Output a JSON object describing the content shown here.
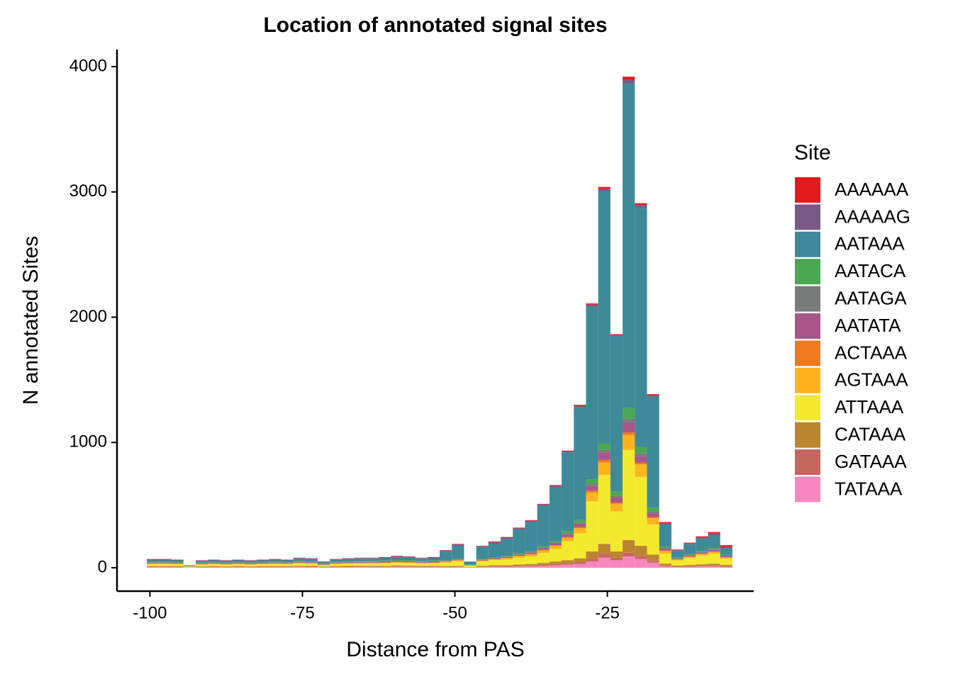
{
  "chart_data": {
    "type": "stacked_histogram",
    "title": "Location of annotated signal sites",
    "x_label": "Distance from PAS",
    "y_label": "N annotated Sites",
    "legend_title": "Site",
    "legend_position": "right",
    "bins": [
      -100.5,
      -98.5,
      -96.5,
      -94.5,
      -92.5,
      -90.5,
      -88.5,
      -86.5,
      -84.5,
      -82.5,
      -80.5,
      -78.5,
      -76.5,
      -74.5,
      -72.5,
      -70.5,
      -68.5,
      -66.5,
      -64.5,
      -62.5,
      -60.5,
      -58.5,
      -56.5,
      -54.5,
      -52.5,
      -50.5,
      -48.5,
      -46.5,
      -44.5,
      -42.5,
      -40.5,
      -38.5,
      -36.5,
      -34.5,
      -32.5,
      -30.5,
      -28.5,
      -26.5,
      -24.5,
      -22.5,
      -20.5,
      -18.5,
      -16.5,
      -14.5,
      -12.5,
      -10.5,
      -8.5,
      -6.5,
      -4.5
    ],
    "xlim": [
      -105.4,
      -1
    ],
    "xticks": [
      -100,
      -75,
      -50,
      -25
    ],
    "ylim": [
      -187,
      4136
    ],
    "yticks": [
      0,
      1000,
      2000,
      3000,
      4000
    ],
    "series": [
      {
        "name": "AAAAAA",
        "color": "#e41a1c",
        "values": [
          2,
          2,
          2,
          1,
          2,
          2,
          2,
          2,
          2,
          2,
          2,
          2,
          2,
          2,
          1,
          2,
          2,
          2,
          2,
          3,
          3,
          3,
          2,
          3,
          4,
          4,
          1,
          4,
          5,
          5,
          5,
          5,
          5,
          5,
          5,
          10,
          10,
          15,
          5,
          25,
          15,
          10,
          8,
          4,
          6,
          8,
          10,
          15
        ]
      },
      {
        "name": "AAAAAG",
        "color": "#775b86",
        "values": [
          5,
          5,
          4,
          1,
          4,
          4,
          4,
          4,
          4,
          4,
          5,
          4,
          6,
          6,
          4,
          5,
          6,
          6,
          6,
          6,
          8,
          7,
          6,
          6,
          8,
          8,
          3,
          6,
          10,
          10,
          10,
          10,
          10,
          10,
          10,
          10,
          15,
          25,
          10,
          30,
          25,
          10,
          12,
          6,
          9,
          12,
          15,
          10
        ]
      },
      {
        "name": "AATAAA",
        "color": "#3e8a99",
        "values": [
          15,
          15,
          14,
          4,
          13,
          14,
          13,
          14,
          13,
          14,
          15,
          14,
          18,
          16,
          11,
          15,
          16,
          18,
          18,
          19,
          22,
          21,
          18,
          19,
          68,
          105,
          22,
          94,
          111,
          136,
          191,
          234,
          325,
          435,
          630,
          900,
          1380,
          2010,
          1240,
          2590,
          1905,
          885,
          175,
          55,
          77,
          96,
          104,
          52
        ]
      },
      {
        "name": "AATACA",
        "color": "#4aa853",
        "values": [
          5,
          5,
          4,
          1,
          4,
          4,
          4,
          4,
          4,
          4,
          5,
          4,
          5,
          5,
          4,
          5,
          5,
          5,
          5,
          6,
          6,
          6,
          5,
          6,
          4,
          5,
          2,
          5,
          5,
          6,
          7,
          8,
          10,
          10,
          15,
          20,
          35,
          50,
          35,
          85,
          50,
          30,
          12,
          5,
          7,
          9,
          10,
          7
        ]
      },
      {
        "name": "AATAGA",
        "color": "#7a7c7c",
        "values": [
          3,
          3,
          3,
          1,
          3,
          3,
          3,
          3,
          3,
          3,
          3,
          3,
          3,
          3,
          2,
          3,
          3,
          3,
          3,
          3,
          3,
          3,
          3,
          3,
          2,
          2,
          1,
          2,
          3,
          3,
          4,
          4,
          5,
          5,
          10,
          10,
          15,
          20,
          15,
          30,
          25,
          15,
          5,
          2,
          3,
          3,
          4,
          3
        ]
      },
      {
        "name": "AATATA",
        "color": "#a8568a",
        "values": [
          5,
          5,
          5,
          1,
          4,
          5,
          4,
          5,
          4,
          5,
          5,
          5,
          6,
          5,
          4,
          5,
          5,
          6,
          6,
          6,
          7,
          6,
          6,
          6,
          5,
          6,
          2,
          5,
          6,
          7,
          8,
          10,
          12,
          15,
          20,
          25,
          40,
          60,
          40,
          80,
          50,
          30,
          15,
          6,
          8,
          10,
          12,
          8
        ]
      },
      {
        "name": "ACTAAA",
        "color": "#ee7a22",
        "values": [
          2,
          2,
          2,
          1,
          2,
          2,
          2,
          2,
          2,
          2,
          2,
          2,
          2,
          2,
          1,
          2,
          2,
          2,
          2,
          2,
          2,
          2,
          2,
          2,
          2,
          2,
          1,
          2,
          2,
          3,
          3,
          4,
          5,
          5,
          5,
          10,
          15,
          20,
          10,
          20,
          15,
          10,
          5,
          2,
          3,
          3,
          4,
          3
        ]
      },
      {
        "name": "AGTAAA",
        "color": "#fdb41f",
        "values": [
          5,
          5,
          4,
          1,
          4,
          4,
          4,
          4,
          4,
          4,
          5,
          4,
          5,
          5,
          3,
          5,
          5,
          5,
          5,
          6,
          6,
          6,
          5,
          6,
          6,
          8,
          3,
          7,
          8,
          10,
          12,
          15,
          20,
          25,
          30,
          40,
          70,
          100,
          60,
          120,
          100,
          50,
          20,
          8,
          10,
          12,
          14,
          10
        ]
      },
      {
        "name": "ATTAAA",
        "color": "#f3ea2e",
        "values": [
          15,
          15,
          14,
          5,
          13,
          14,
          13,
          14,
          13,
          14,
          15,
          14,
          18,
          17,
          10,
          15,
          17,
          18,
          18,
          19,
          21,
          20,
          18,
          19,
          28,
          35,
          10,
          35,
          40,
          45,
          55,
          60,
          80,
          100,
          150,
          200,
          400,
          550,
          320,
          720,
          550,
          240,
          80,
          40,
          55,
          70,
          80,
          50
        ]
      },
      {
        "name": "CATAAA",
        "color": "#bc852f",
        "values": [
          5,
          5,
          5,
          2,
          4,
          5,
          4,
          5,
          4,
          5,
          5,
          5,
          6,
          6,
          4,
          5,
          6,
          6,
          6,
          6,
          7,
          7,
          6,
          6,
          5,
          6,
          2,
          6,
          8,
          8,
          10,
          12,
          15,
          20,
          25,
          30,
          60,
          80,
          50,
          100,
          80,
          50,
          15,
          8,
          10,
          12,
          14,
          10
        ]
      },
      {
        "name": "GATAAA",
        "color": "#c5665f",
        "values": [
          3,
          3,
          3,
          1,
          3,
          3,
          3,
          3,
          3,
          3,
          3,
          3,
          3,
          3,
          2,
          3,
          3,
          3,
          3,
          3,
          3,
          3,
          3,
          3,
          3,
          3,
          1,
          3,
          4,
          4,
          5,
          6,
          8,
          10,
          10,
          15,
          20,
          30,
          20,
          30,
          25,
          15,
          6,
          3,
          4,
          5,
          6,
          4
        ]
      },
      {
        "name": "TATAAA",
        "color": "#f787bf",
        "values": [
          5,
          5,
          5,
          1,
          4,
          5,
          4,
          5,
          4,
          5,
          5,
          5,
          6,
          5,
          4,
          5,
          5,
          6,
          6,
          6,
          7,
          6,
          6,
          6,
          5,
          6,
          2,
          6,
          8,
          8,
          10,
          12,
          15,
          20,
          25,
          30,
          50,
          80,
          60,
          90,
          70,
          40,
          12,
          6,
          8,
          10,
          12,
          8
        ]
      }
    ]
  }
}
